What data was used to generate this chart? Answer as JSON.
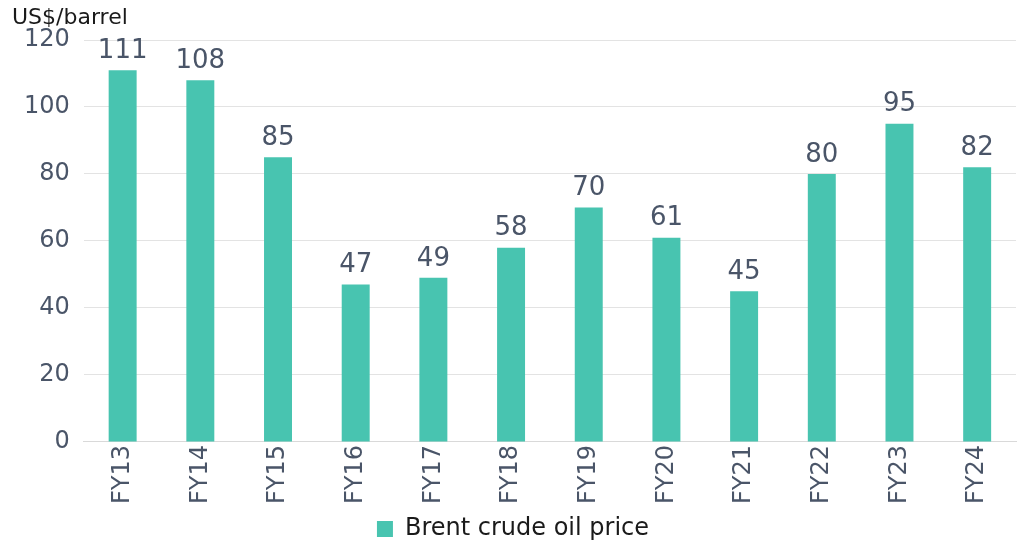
{
  "chart_data": {
    "type": "bar",
    "ylabel": "US$/barrel",
    "categories": [
      "FY13",
      "FY14",
      "FY15",
      "FY16",
      "FY17",
      "FY18",
      "FY19",
      "FY20",
      "FY21",
      "FY22",
      "FY23",
      "FY24"
    ],
    "series": [
      {
        "name": "Brent crude oil price",
        "color": "#48c4b0",
        "values": [
          111,
          108,
          85,
          47,
          49,
          58,
          70,
          61,
          45,
          80,
          95,
          82
        ]
      }
    ],
    "ylim": [
      0,
      120
    ],
    "yticks": [
      0,
      20,
      40,
      60,
      80,
      100,
      120
    ],
    "grid": "y",
    "legend": "bottom",
    "data_labels": true
  }
}
